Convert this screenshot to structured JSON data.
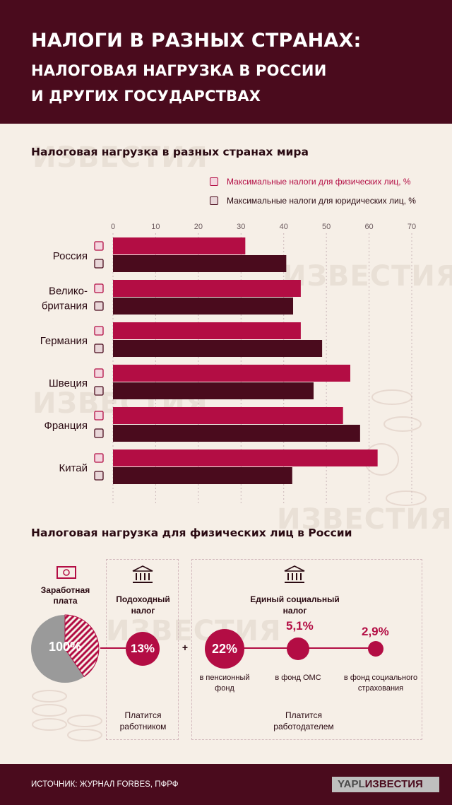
{
  "header": {
    "line1": "НАЛОГИ В РАЗНЫХ СТРАНАХ:",
    "line2": "НАЛОГОВАЯ НАГРУЗКА В РОССИИ",
    "line3": "И ДРУГИХ ГОСУДАРСТВАХ"
  },
  "watermark": "ИЗВЕСТИЯ",
  "chart_data": {
    "type": "bar",
    "title": "Налоговая нагрузка в разных странах мира",
    "categories": [
      "Россия",
      "Велико-британия",
      "Германия",
      "Швеция",
      "Франция",
      "Китай"
    ],
    "category_lines": [
      [
        "Россия"
      ],
      [
        "Велико-",
        "британия"
      ],
      [
        "Германия"
      ],
      [
        "Швеция"
      ],
      [
        "Франция"
      ],
      [
        "Китай"
      ]
    ],
    "series": [
      {
        "name": "Максимальные налоги для физических лиц, %",
        "values": [
          31,
          44,
          44,
          55.6,
          53.9,
          62
        ],
        "color": "#b30d44"
      },
      {
        "name": "Максимальные налоги для юридических лиц, %",
        "values": [
          40.6,
          42.2,
          49,
          47,
          57.9,
          42
        ],
        "color": "#4a0b1d"
      }
    ],
    "xticks": [
      0,
      10,
      20,
      30,
      40,
      50,
      60,
      70
    ],
    "xlim": [
      0,
      70
    ],
    "orientation": "horizontal",
    "grid": true,
    "legend_position": "top-right"
  },
  "section2": {
    "title": "Налоговая нагрузка для физических лиц в России",
    "salary_label": "Заработная плата",
    "salary_pct": "100%",
    "income_tax_label": "Подоходный налог",
    "income_tax_pct": "13%",
    "income_tax_payer": "Платится работником",
    "plus": "+",
    "social_tax_label": "Единый социальный налог",
    "pension_pct": "22%",
    "pension_label": "в пенсионный фонд",
    "oms_pct": "5,1%",
    "oms_label": "в фонд ОМС",
    "social_pct": "2,9%",
    "social_label": "в фонд социального страхования",
    "social_payer": "Платится работодателем"
  },
  "footer": {
    "source": "ИСТОЧНИК: ЖУРНАЛ FORBES, ПФРФ",
    "badge_prefix": "YAPL",
    "badge_brand": "ИЗВЕСТИЯ"
  },
  "colors": {
    "accent": "#b30d44",
    "dark": "#4a0b1d",
    "background": "#f6efe7",
    "grey": "#9a9a9a"
  }
}
